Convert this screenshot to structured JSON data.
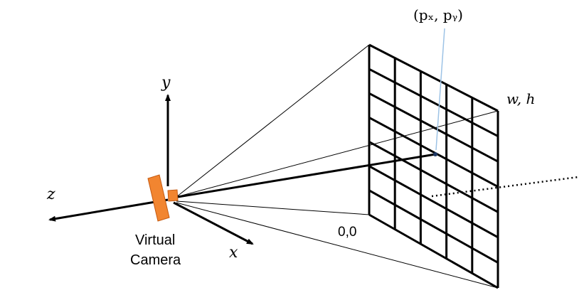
{
  "labels": {
    "pixel": "(pₓ, pᵧ)",
    "corner_far": "w, h",
    "origin": "0,0",
    "axis_x": "x",
    "axis_y": "y",
    "axis_z": "z",
    "camera_line1": "Virtual",
    "camera_line2": "Camera"
  },
  "grid": {
    "columns": 5,
    "rows": 7
  },
  "colors": {
    "camera_body": "#F28530",
    "camera_outline": "#C55A11",
    "pointer": "#9DC3E6",
    "lines": "#000000"
  }
}
